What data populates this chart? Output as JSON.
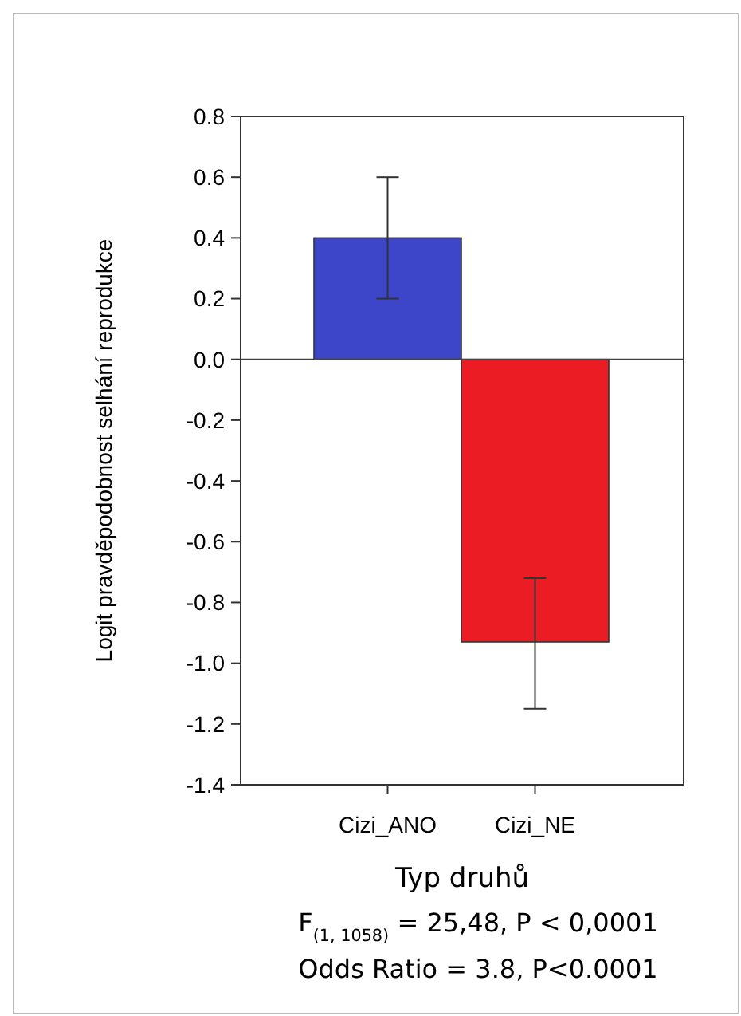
{
  "chart_data": {
    "type": "bar",
    "xlabel": "Typ druhů",
    "ylabel": "Logit pravděpodobnost selhání reprodukce",
    "categories": [
      "Cizi_ANO",
      "Cizi_NE"
    ],
    "values": [
      0.4,
      -0.93
    ],
    "colors": [
      "#3d45c8",
      "#ec1c24"
    ],
    "errors": [
      [
        0.2,
        0.6
      ],
      [
        -1.15,
        -0.72
      ]
    ],
    "ylim": [
      -1.4,
      0.8
    ],
    "yticks": [
      {
        "value": -1.4,
        "label": "-1.4"
      },
      {
        "value": -1.2,
        "label": "-1.2"
      },
      {
        "value": -1.0,
        "label": "-1.0"
      },
      {
        "value": -0.8,
        "label": "-0.8"
      },
      {
        "value": -0.6,
        "label": "-0.6"
      },
      {
        "value": -0.4,
        "label": "-0.4"
      },
      {
        "value": -0.2,
        "label": "-0.2"
      },
      {
        "value": 0,
        "label": "0.0"
      },
      {
        "value": 0.2,
        "label": "0.2"
      },
      {
        "value": 0.4,
        "label": "0.4"
      },
      {
        "value": 0.6,
        "label": "0.6"
      },
      {
        "value": 0.8,
        "label": "0.8"
      }
    ],
    "ref_lines": [
      {
        "axis": "y",
        "value": 0
      }
    ],
    "grid": false,
    "annotations": [
      "F$_{(1, 1058)}$ = 25,48, P < 0,0001",
      "Odds Ratio = 3.8, P<0.0001"
    ]
  }
}
